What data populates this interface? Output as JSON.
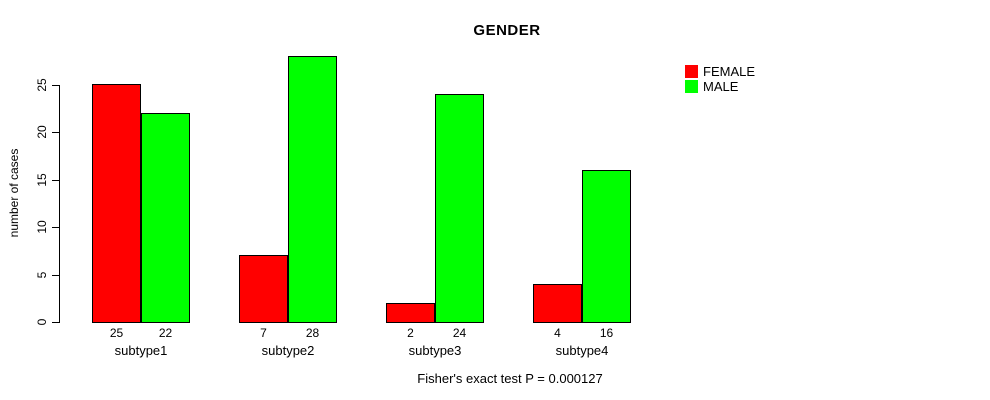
{
  "chart_data": {
    "type": "bar",
    "title": "GENDER",
    "categories": [
      "subtype1",
      "subtype2",
      "subtype3",
      "subtype4"
    ],
    "series": [
      {
        "name": "FEMALE",
        "color": "#ff0000",
        "values": [
          25,
          7,
          2,
          4
        ]
      },
      {
        "name": "MALE",
        "color": "#00ff00",
        "values": [
          22,
          28,
          24,
          16
        ]
      }
    ],
    "xlabel": "",
    "ylabel": "number of cases",
    "yticks": [
      0,
      5,
      10,
      15,
      20,
      25
    ],
    "ylim": [
      0,
      25
    ],
    "grid": false,
    "bar_value_labels": true,
    "legend_position": "right",
    "annotation": "Fisher's exact test P = 0.000127"
  }
}
